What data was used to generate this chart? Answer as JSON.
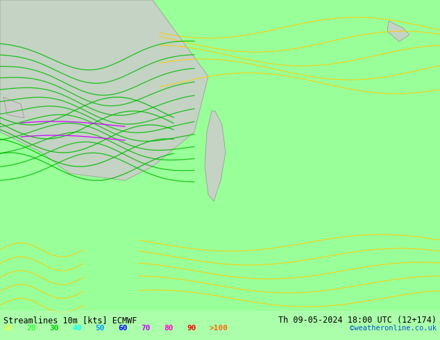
{
  "title_left": "Streamlines 10m [kts] ECMWF",
  "title_right": "Th 09-05-2024 18:00 UTC (12+174)",
  "credit": "©weatheronline.co.uk",
  "legend_values": [
    "10",
    "20",
    "30",
    "40",
    "50",
    "60",
    "70",
    "80",
    "90",
    ">100"
  ],
  "legend_colors": [
    "#ffff00",
    "#00ff00",
    "#00cc00",
    "#00ffff",
    "#0099ff",
    "#0000ff",
    "#cc00ff",
    "#ff00cc",
    "#ff0000",
    "#ff6600"
  ],
  "bg_color": "#99ff99",
  "land_color": "#cccccc",
  "border_color": "#888888",
  "streamline_color_low": "#ffcc00",
  "streamline_color_mid": "#00cc00",
  "streamline_color_high": "#cc00ff",
  "fig_width": 6.34,
  "fig_height": 4.9,
  "dpi": 100
}
